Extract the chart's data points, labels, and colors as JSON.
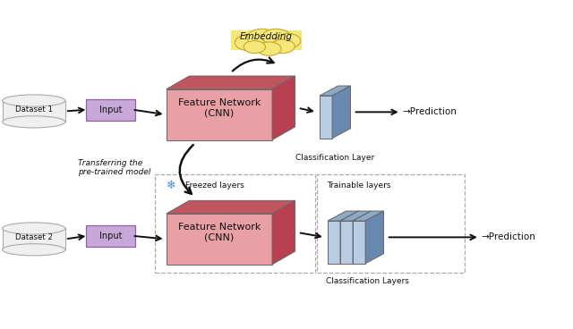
{
  "bg_color": "#ffffff",
  "dataset1_label": "Dataset 1",
  "dataset2_label": "Dataset 2",
  "input_label": "Input",
  "feature_network_label": "Feature Network\n(CNN)",
  "embedding_label": "Embedding",
  "prediction_label": "→Prediction",
  "classification_layer_label": "Classification Layer",
  "classification_layers_label": "Classification Layers",
  "transfer_label": "Transferring the\npre-trained model",
  "frozen_label": "  Freezed layers",
  "trainable_label": "Trainable layers",
  "pink_face": "#e8a0a4",
  "pink_top": "#c05560",
  "pink_side": "#b84050",
  "blue_face": "#b8cce4",
  "blue_top": "#8aaac8",
  "blue_side": "#6888b0",
  "purple_box": "#c8a8d8",
  "purple_edge": "#9060a0",
  "cloud_fill": "#f5e87a",
  "cloud_edge": "#c8a828",
  "dataset_fill": "#f0f0f0",
  "dataset_edge": "#aaaaaa",
  "box_edge": "#aaaaaa",
  "arrow_color": "#111111",
  "text_color": "#111111",
  "snowflake_color": "#4488cc"
}
